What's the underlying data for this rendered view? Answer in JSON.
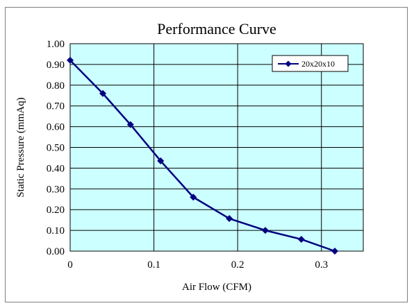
{
  "chart_data": {
    "type": "line",
    "title": "Performance Curve",
    "xlabel": "Air Flow (CFM)",
    "ylabel": "Static Pressure (mmAq)",
    "xlim": [
      0,
      0.35
    ],
    "ylim": [
      0,
      1.0
    ],
    "x_ticks": [
      "0",
      "0.1",
      "0.2",
      "0.3"
    ],
    "x_tick_values": [
      0,
      0.1,
      0.2,
      0.3
    ],
    "y_ticks": [
      "0.00",
      "0.10",
      "0.20",
      "0.30",
      "0.40",
      "0.50",
      "0.60",
      "0.70",
      "0.80",
      "0.90",
      "1.00"
    ],
    "y_tick_values": [
      0,
      0.1,
      0.2,
      0.3,
      0.4,
      0.5,
      0.6,
      0.7,
      0.8,
      0.9,
      1.0
    ],
    "grid": true,
    "legend_position": "top-right",
    "plot_background": "#ccffff",
    "series": [
      {
        "name": "20x20x10",
        "color": "#000080",
        "marker": "diamond",
        "x": [
          0,
          0.039,
          0.072,
          0.108,
          0.147,
          0.19,
          0.233,
          0.276,
          0.316
        ],
        "y": [
          0.92,
          0.76,
          0.61,
          0.435,
          0.26,
          0.157,
          0.1,
          0.057,
          0.0
        ]
      }
    ]
  }
}
